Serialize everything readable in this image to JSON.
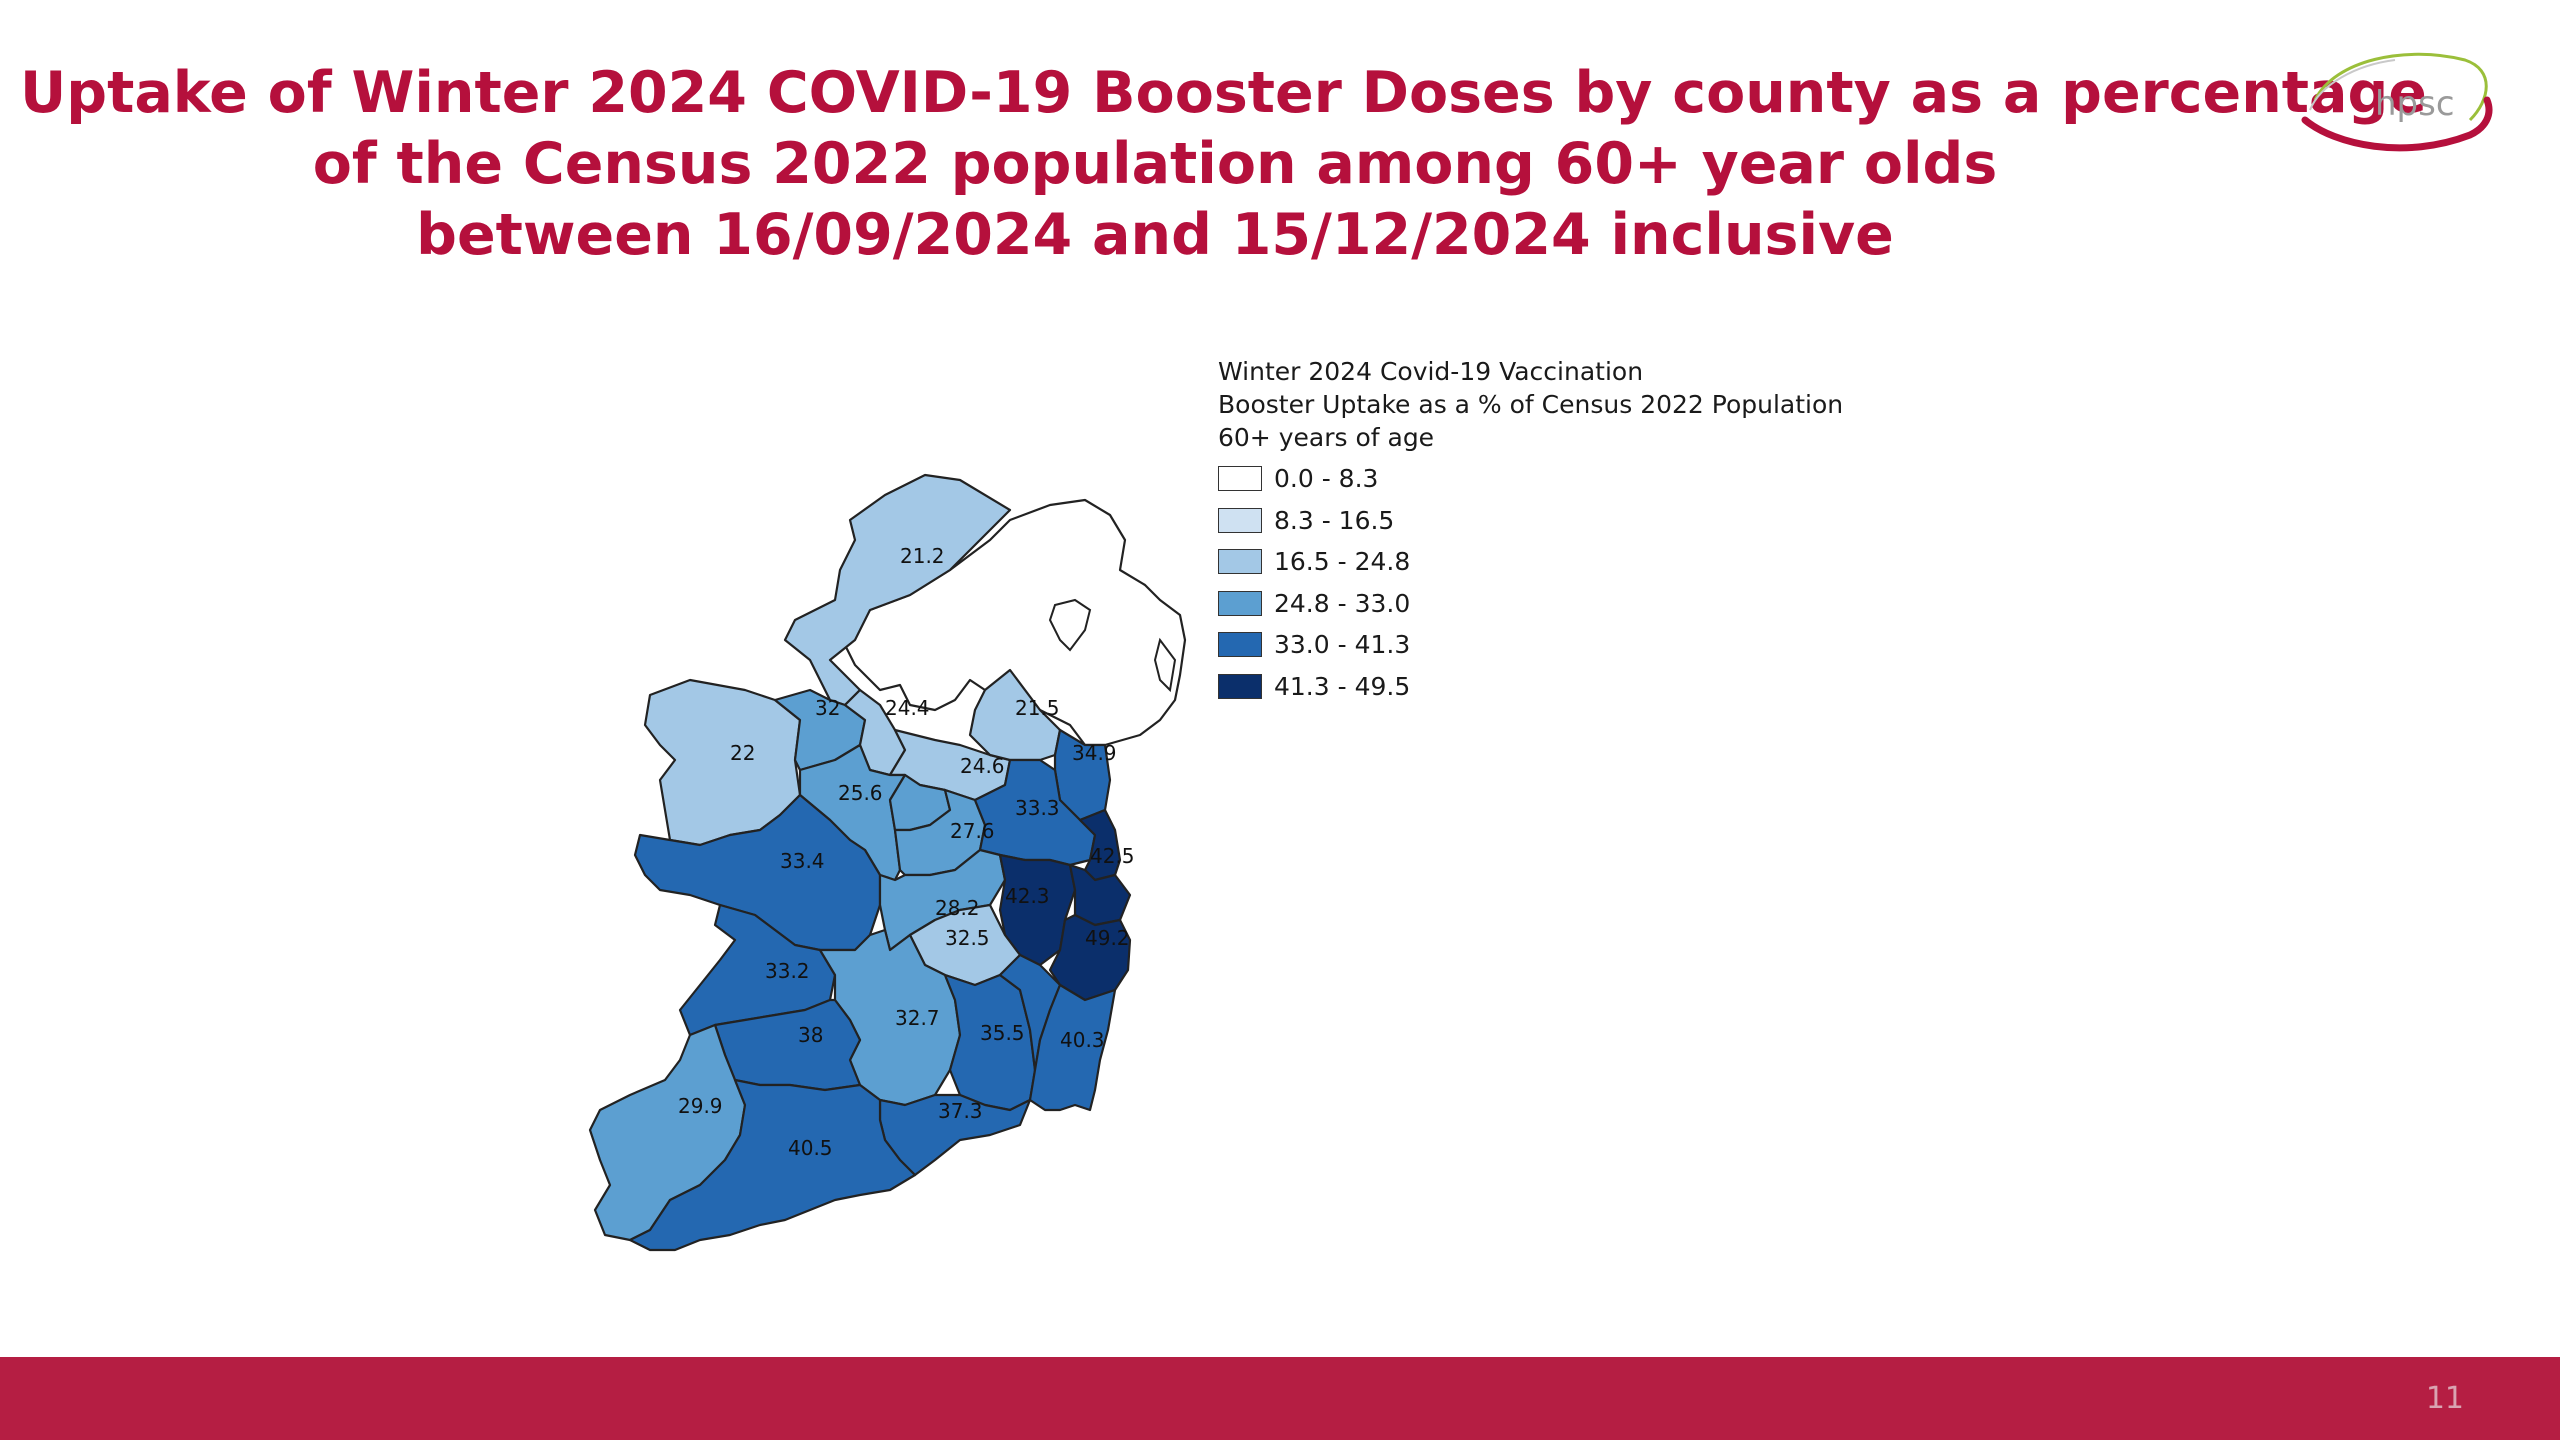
{
  "slide": {
    "title_lines": [
      "Uptake of Winter 2024 COVID-19 Booster Doses by county as a percentage",
      "of the Census 2022 population among 60+ year olds",
      "between 16/09/2024 and 15/12/2024 inclusive"
    ],
    "logo_text": "hpsc",
    "page_number": "11"
  },
  "legend": {
    "title_lines": [
      "Winter 2024 Covid-19 Vaccination",
      "Booster Uptake as a % of Census 2022 Population",
      "60+ years of age"
    ],
    "classes": [
      {
        "label": "0.0 - 8.3",
        "color": "#ffffff"
      },
      {
        "label": "8.3 - 16.5",
        "color": "#cfe1f2"
      },
      {
        "label": "16.5 - 24.8",
        "color": "#a3c8e6"
      },
      {
        "label": "24.8 - 33.0",
        "color": "#5c9fd1"
      },
      {
        "label": "33.0 - 41.3",
        "color": "#2468b1"
      },
      {
        "label": "41.3 - 49.5",
        "color": "#0b2f6b"
      }
    ]
  },
  "map": {
    "county_values": [
      "21.2",
      "22",
      "32",
      "24.4",
      "21.5",
      "24.6",
      "34.9",
      "25.6",
      "33.3",
      "27.6",
      "33.4",
      "42.5",
      "28.2",
      "42.3",
      "32.5",
      "49.2",
      "33.2",
      "38",
      "32.7",
      "35.5",
      "40.3",
      "29.9",
      "37.3",
      "40.5"
    ],
    "northern_ireland_fill": "#ffffff"
  }
}
